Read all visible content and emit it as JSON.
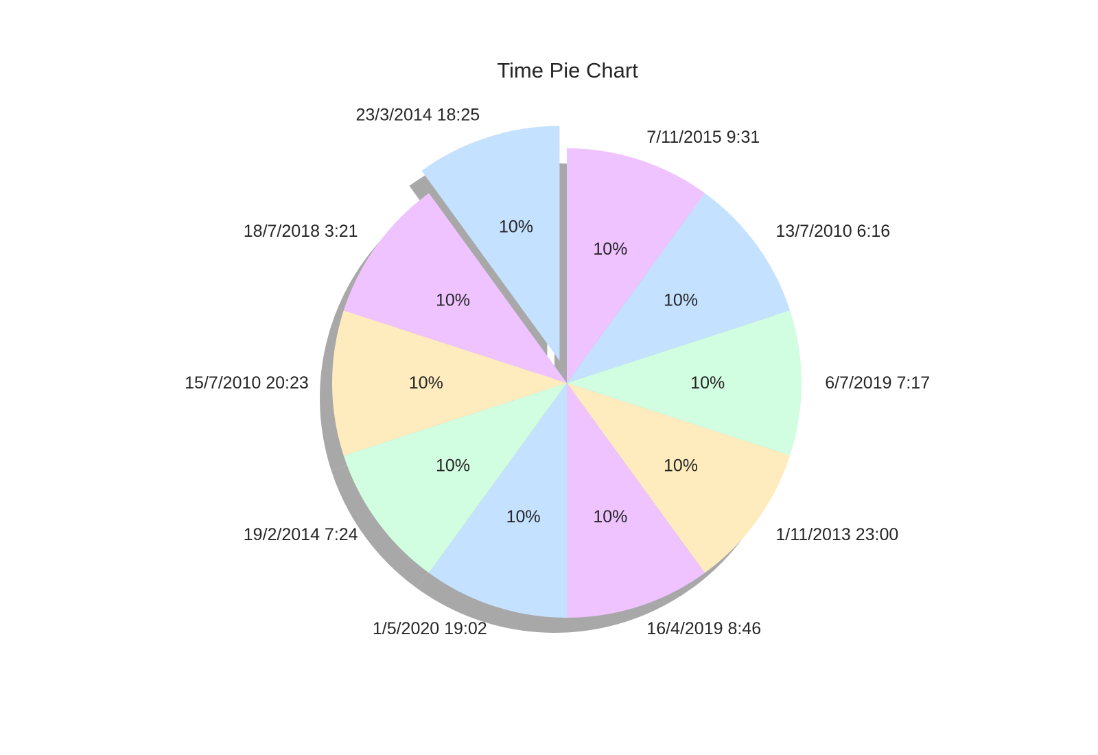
{
  "chart_data": {
    "type": "pie",
    "title": "Time Pie Chart",
    "start_angle_deg": 90,
    "direction": "clockwise",
    "shadow": true,
    "slices": [
      {
        "label": "7/11/2015 9:31",
        "value": 10,
        "pct_label": "10%",
        "color": "#efc3ff",
        "explode": 0
      },
      {
        "label": "13/7/2010 6:16",
        "value": 10,
        "pct_label": "10%",
        "color": "#c4e1ff",
        "explode": 0
      },
      {
        "label": "6/7/2019 7:17",
        "value": 10,
        "pct_label": "10%",
        "color": "#d1fde0",
        "explode": 0
      },
      {
        "label": "1/11/2013 23:00",
        "value": 10,
        "pct_label": "10%",
        "color": "#ffecbe",
        "explode": 0
      },
      {
        "label": "16/4/2019 8:46",
        "value": 10,
        "pct_label": "10%",
        "color": "#efc3ff",
        "explode": 0
      },
      {
        "label": "1/5/2020 19:02",
        "value": 10,
        "pct_label": "10%",
        "color": "#c4e1ff",
        "explode": 0
      },
      {
        "label": "19/2/2014 7:24",
        "value": 10,
        "pct_label": "10%",
        "color": "#d1fde0",
        "explode": 0
      },
      {
        "label": "15/7/2010 20:23",
        "value": 10,
        "pct_label": "10%",
        "color": "#ffecbe",
        "explode": 0
      },
      {
        "label": "18/7/2018 3:21",
        "value": 10,
        "pct_label": "10%",
        "color": "#efc3ff",
        "explode": 0
      },
      {
        "label": "23/3/2014 18:25",
        "value": 10,
        "pct_label": "10%",
        "color": "#c4e1ff",
        "explode": 0.1
      }
    ]
  }
}
